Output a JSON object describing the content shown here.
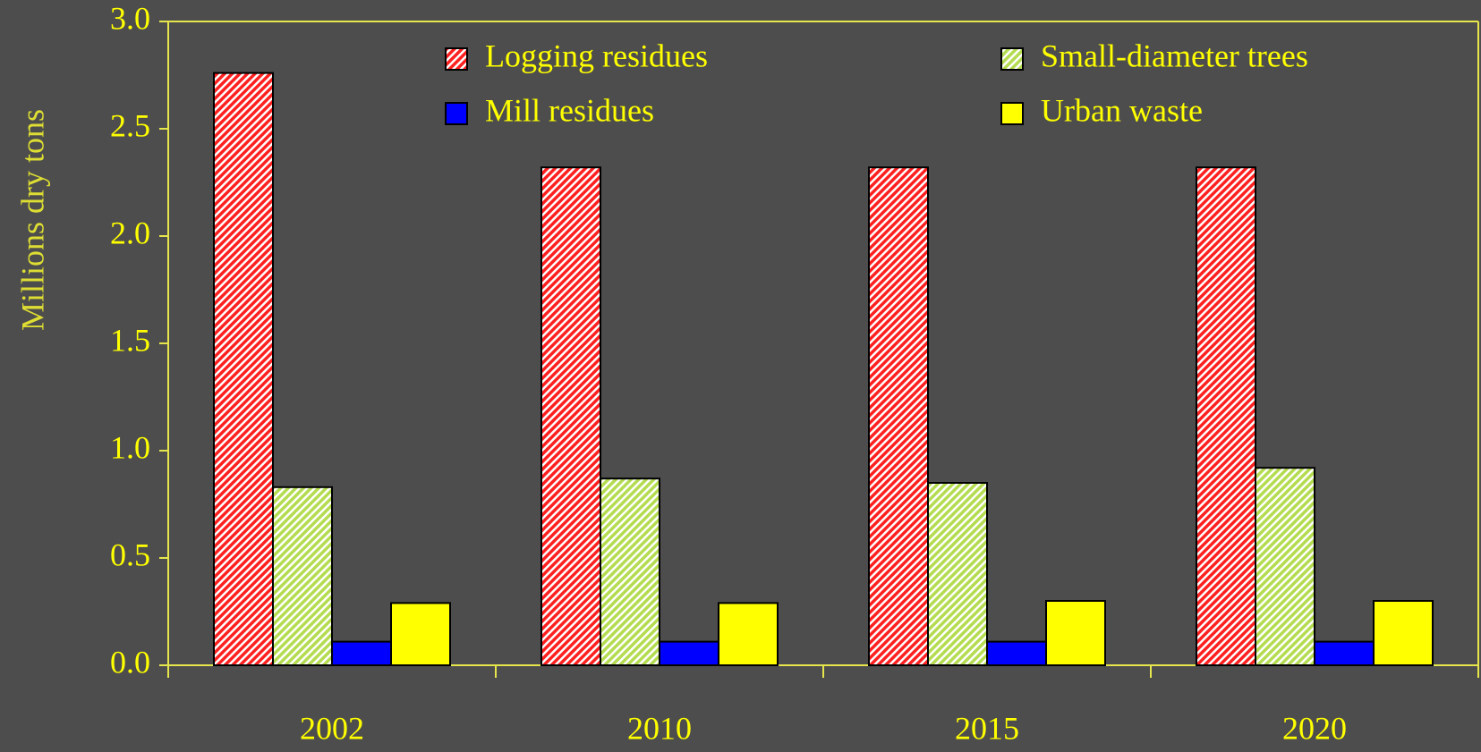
{
  "chart_data": {
    "type": "bar",
    "y_label": "Millions dry tons",
    "categories": [
      "2002",
      "2010",
      "2015",
      "2020"
    ],
    "series": [
      {
        "name": "Logging residues",
        "color": "#ff2020",
        "hatch": true,
        "values": [
          2.76,
          2.32,
          2.32,
          2.32
        ]
      },
      {
        "name": "Small-diameter trees",
        "color": "#b4dc50",
        "hatch": true,
        "values": [
          0.83,
          0.87,
          0.85,
          0.92
        ]
      },
      {
        "name": "Mill residues",
        "color": "#0000ff",
        "hatch": false,
        "values": [
          0.11,
          0.11,
          0.11,
          0.11
        ]
      },
      {
        "name": "Urban waste",
        "color": "#ffff00",
        "hatch": false,
        "values": [
          0.29,
          0.29,
          0.3,
          0.3
        ]
      }
    ],
    "ylim": [
      0,
      3
    ],
    "yticks": [
      {
        "value": 0,
        "label": "0.0"
      },
      0.5,
      {
        "value": 1,
        "label": "1.0"
      },
      1.5,
      {
        "value": 2,
        "label": "2.0"
      },
      2.5,
      {
        "value": 3,
        "label": "3.0"
      }
    ],
    "grid": false,
    "legend": "top"
  }
}
